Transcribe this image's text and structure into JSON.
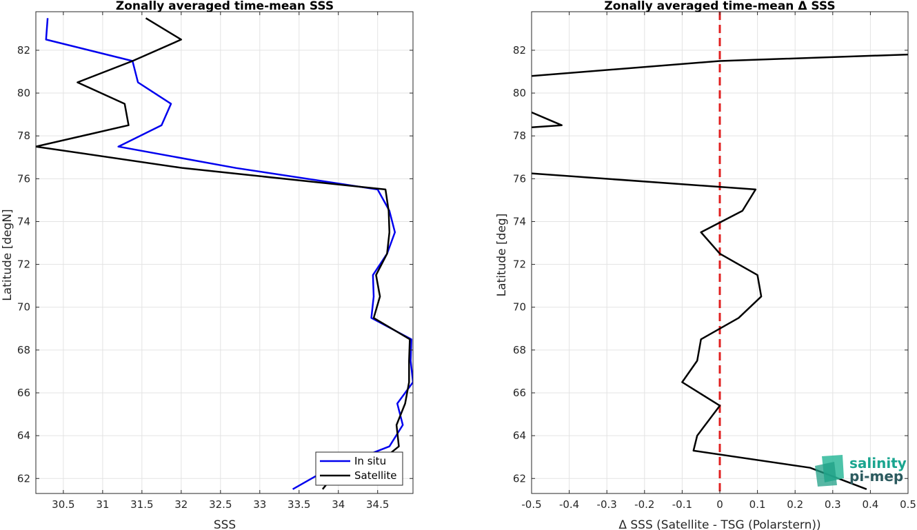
{
  "charts": [
    {
      "id": "left",
      "type": "line",
      "title": "Zonally averaged time-mean SSS",
      "xlabel": "SSS",
      "ylabel": "Latitude [degN]",
      "xlim": [
        30.15,
        34.95
      ],
      "ylim": [
        61.3,
        83.8
      ],
      "xticks": [
        30.5,
        31,
        31.5,
        32,
        32.5,
        33,
        33.5,
        34,
        34.5
      ],
      "xticklabels": [
        "30.5",
        "31",
        "31.5",
        "32",
        "32.5",
        "33",
        "33.5",
        "34",
        "34.5"
      ],
      "yticks": [
        62,
        64,
        66,
        68,
        70,
        72,
        74,
        76,
        78,
        80,
        82
      ],
      "yticklabels": [
        "62",
        "64",
        "66",
        "68",
        "70",
        "72",
        "74",
        "76",
        "78",
        "80",
        "82"
      ],
      "legend": {
        "position": "bottom-right"
      }
    },
    {
      "id": "right",
      "type": "line",
      "title": "Zonally averaged time-mean Δ SSS",
      "xlabel": "Δ SSS (Satellite - TSG (Polarstern))",
      "ylabel": "Latitude [deg]",
      "xlim": [
        -0.5,
        0.5
      ],
      "ylim": [
        61.3,
        83.8
      ],
      "xticks": [
        -0.5,
        -0.4,
        -0.3,
        -0.2,
        -0.1,
        0,
        0.1,
        0.2,
        0.3,
        0.4,
        0.5
      ],
      "xticklabels": [
        "-0.5",
        "-0.4",
        "-0.3",
        "-0.2",
        "-0.1",
        "0",
        "0.1",
        "0.2",
        "0.3",
        "0.4",
        "0.5"
      ],
      "yticks": [
        62,
        64,
        66,
        68,
        70,
        72,
        74,
        76,
        78,
        80,
        82
      ],
      "yticklabels": [
        "62",
        "64",
        "66",
        "68",
        "70",
        "72",
        "74",
        "76",
        "78",
        "80",
        "82"
      ],
      "reference_line": {
        "x": 0,
        "style": "dashed",
        "color": "#e02020"
      }
    }
  ],
  "chart_data": [
    {
      "type": "line",
      "title": "Zonally averaged time-mean SSS",
      "xlabel": "SSS",
      "ylabel": "Latitude [degN]",
      "xlim": [
        30.15,
        34.95
      ],
      "ylim": [
        61.3,
        83.8
      ],
      "grid": true,
      "legend_position": "bottom-right",
      "series": [
        {
          "name": "In situ",
          "color": "#0000ee",
          "x": [
            33.42,
            33.9,
            34.3,
            34.65,
            34.82,
            34.75,
            34.95,
            34.92,
            34.93,
            34.42,
            34.45,
            34.44,
            34.62,
            34.72,
            34.65,
            34.5,
            32.7,
            31.2,
            31.75,
            31.87,
            31.45,
            31.38,
            30.28,
            30.3
          ],
          "y": [
            61.5,
            62.5,
            63.0,
            63.5,
            64.5,
            65.5,
            66.5,
            67.5,
            68.5,
            69.5,
            70.5,
            71.5,
            72.5,
            73.5,
            74.5,
            75.5,
            76.5,
            77.5,
            78.5,
            79.5,
            80.5,
            81.5,
            82.5,
            83.5
          ]
        },
        {
          "name": "Satellite",
          "color": "#000000",
          "x": [
            33.8,
            34.02,
            34.6,
            34.77,
            34.74,
            34.85,
            34.9,
            34.9,
            34.91,
            34.45,
            34.53,
            34.48,
            34.62,
            34.65,
            34.64,
            34.6,
            32.02,
            30.15,
            31.33,
            31.28,
            30.68,
            31.38,
            32.0,
            31.55
          ],
          "y": [
            61.5,
            62.5,
            63.0,
            63.5,
            64.5,
            65.5,
            66.5,
            67.5,
            68.5,
            69.5,
            70.5,
            71.5,
            72.5,
            73.5,
            74.5,
            75.5,
            76.5,
            77.5,
            78.5,
            79.5,
            80.5,
            81.5,
            82.5,
            83.5
          ]
        }
      ]
    },
    {
      "type": "line",
      "title": "Zonally averaged time-mean Δ SSS",
      "xlabel": "Δ SSS (Satellite - TSG (Polarstern))",
      "ylabel": "Latitude [deg]",
      "xlim": [
        -0.5,
        0.5
      ],
      "ylim": [
        61.3,
        83.8
      ],
      "grid": true,
      "series": [
        {
          "color": "#000000",
          "segments": [
            {
              "x": [
                0.39,
                0.24,
                -0.07,
                -0.06,
                0.0,
                -0.1,
                -0.06,
                -0.05,
                0.05,
                0.11,
                0.1,
                0.0,
                -0.05,
                0.06,
                0.095,
                -0.5
              ],
              "y": [
                61.5,
                62.5,
                63.3,
                64.0,
                65.4,
                66.5,
                67.5,
                68.5,
                69.5,
                70.5,
                71.5,
                72.5,
                73.5,
                74.5,
                75.5,
                76.25
              ]
            },
            {
              "x": [
                -0.5,
                -0.42,
                -0.5
              ],
              "y": [
                78.4,
                78.5,
                79.1
              ]
            },
            {
              "x": [
                -0.5,
                0.0,
                0.5
              ],
              "y": [
                80.8,
                81.5,
                81.8
              ]
            }
          ]
        }
      ],
      "reference_line_x": 0
    }
  ],
  "legend": {
    "items": [
      {
        "label": "In situ",
        "color": "#0000ee"
      },
      {
        "label": "Satellite",
        "color": "#000000"
      }
    ]
  },
  "logo": {
    "line1": "salinity",
    "line2": "pi-mep",
    "color1": "#1aa58f",
    "color2": "#2b5a5e"
  }
}
